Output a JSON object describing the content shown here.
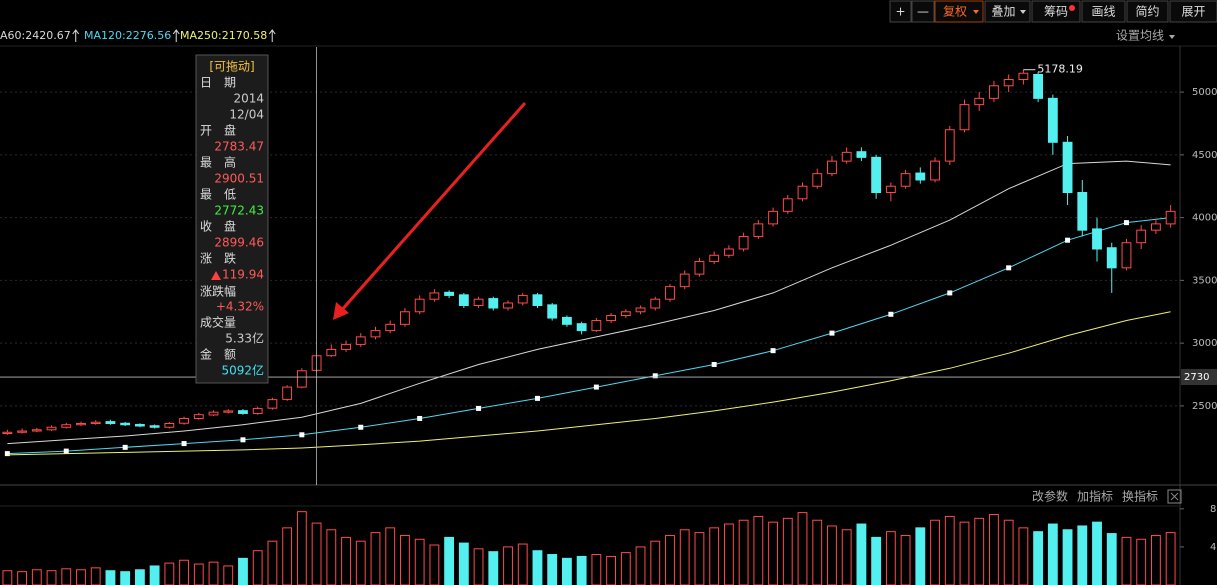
{
  "toolbar": {
    "buttons": [
      "+",
      "—",
      "复权",
      "叠加",
      "筹码",
      "画线",
      "简约",
      "展开"
    ]
  },
  "settings_label": "设置均线",
  "indicator_panel": {
    "buttons": [
      "改参数",
      "加指标",
      "换指标"
    ]
  },
  "tooltip": {
    "drag": "[可拖动]",
    "labels": [
      "日　期",
      "开　盘",
      "最　高",
      "最　低",
      "收　盘",
      "涨　跌",
      "涨跌幅",
      "成交量",
      "金　额"
    ],
    "year": "2014",
    "date": "12/04",
    "change": "119.94",
    "change_pct": "+4.32%",
    "volume": "5.33亿",
    "amount": "5092亿"
  },
  "chart_data": {
    "type": "candlestick",
    "open": [
      2280,
      2290,
      2300,
      2310,
      2330,
      2350,
      2360,
      2375,
      2362,
      2352,
      2342,
      2330,
      2362,
      2400,
      2428,
      2450,
      2462,
      2440,
      2482,
      2552,
      2650,
      2783.47,
      2900,
      2950,
      2990,
      3050,
      3100,
      3150,
      3250,
      3350,
      3405,
      3385,
      3300,
      3355,
      3280,
      3320,
      3385,
      3305,
      3205,
      3155,
      3100,
      3180,
      3220,
      3250,
      3280,
      3350,
      3450,
      3550,
      3650,
      3700,
      3750,
      3850,
      3950,
      4050,
      4150,
      4250,
      4350,
      4450,
      4525,
      4480,
      4200,
      4250,
      4355,
      4300,
      4450,
      4700,
      4900,
      4950,
      5050,
      5100,
      5140,
      4950,
      4600,
      4200,
      3910,
      3760,
      3600,
      3800,
      3900,
      3950
    ],
    "high": [
      2310,
      2320,
      2325,
      2345,
      2365,
      2375,
      2385,
      2390,
      2372,
      2362,
      2352,
      2372,
      2415,
      2445,
      2465,
      2475,
      2475,
      2495,
      2565,
      2665,
      2800,
      2900.51,
      2990,
      3020,
      3080,
      3130,
      3180,
      3280,
      3380,
      3430,
      3420,
      3400,
      3370,
      3370,
      3340,
      3400,
      3400,
      3320,
      3220,
      3170,
      3200,
      3240,
      3270,
      3300,
      3370,
      3470,
      3580,
      3680,
      3730,
      3780,
      3880,
      3980,
      4080,
      4180,
      4280,
      4390,
      4490,
      4560,
      4560,
      4500,
      4280,
      4380,
      4400,
      4480,
      4730,
      4940,
      5000,
      5090,
      5140,
      5178.19,
      5160,
      4980,
      4650,
      4300,
      4000,
      3800,
      3830,
      3940,
      3990,
      4100
    ],
    "low": [
      2270,
      2280,
      2290,
      2300,
      2320,
      2340,
      2350,
      2350,
      2340,
      2330,
      2320,
      2320,
      2350,
      2390,
      2420,
      2440,
      2430,
      2430,
      2470,
      2540,
      2640,
      2772.43,
      2890,
      2930,
      2970,
      3030,
      3080,
      3130,
      3230,
      3330,
      3360,
      3280,
      3280,
      3260,
      3260,
      3300,
      3280,
      3180,
      3130,
      3070,
      3090,
      3160,
      3200,
      3230,
      3260,
      3330,
      3430,
      3530,
      3630,
      3680,
      3730,
      3830,
      3930,
      4030,
      4130,
      4230,
      4330,
      4430,
      4450,
      4150,
      4130,
      4230,
      4270,
      4280,
      4420,
      4680,
      4850,
      4920,
      5000,
      5060,
      4920,
      4500,
      4100,
      3850,
      3650,
      3400,
      3580,
      3750,
      3870,
      3920
    ],
    "close": [
      2290,
      2300,
      2310,
      2330,
      2350,
      2360,
      2370,
      2360,
      2350,
      2340,
      2330,
      2360,
      2400,
      2430,
      2450,
      2460,
      2440,
      2480,
      2550,
      2650,
      2780,
      2899.46,
      2950,
      2990,
      3050,
      3100,
      3150,
      3250,
      3350,
      3400,
      3380,
      3300,
      3350,
      3280,
      3320,
      3380,
      3300,
      3200,
      3150,
      3100,
      3180,
      3220,
      3250,
      3280,
      3350,
      3450,
      3550,
      3650,
      3700,
      3750,
      3850,
      3950,
      4050,
      4150,
      4250,
      4350,
      4450,
      4520,
      4480,
      4200,
      4250,
      4350,
      4300,
      4450,
      4700,
      4900,
      4950,
      5050,
      5100,
      5150,
      4950,
      4600,
      4200,
      3900,
      3750,
      3600,
      3800,
      3900,
      3950,
      4050
    ],
    "volume": [
      1.5,
      1.4,
      1.6,
      1.5,
      1.7,
      1.6,
      1.8,
      1.5,
      1.4,
      1.6,
      2.0,
      2.3,
      2.6,
      2.2,
      2.4,
      2.0,
      2.8,
      3.6,
      4.6,
      6.0,
      7.7,
      6.5,
      5.8,
      5.0,
      4.6,
      5.5,
      6.0,
      5.2,
      4.8,
      4.2,
      5.0,
      4.4,
      3.8,
      3.5,
      4.0,
      4.3,
      3.6,
      3.2,
      2.8,
      3.0,
      3.2,
      3.0,
      3.4,
      4.0,
      4.6,
      5.2,
      5.8,
      5.5,
      6.0,
      6.4,
      6.8,
      7.2,
      6.6,
      7.0,
      7.6,
      6.8,
      6.2,
      5.8,
      6.4,
      5.0,
      5.6,
      5.2,
      6.0,
      6.8,
      7.2,
      6.6,
      7.0,
      7.4,
      6.8,
      6.0,
      5.6,
      6.4,
      5.8,
      6.2,
      6.6,
      5.4,
      5.0,
      4.8,
      5.2,
      5.5
    ],
    "up_color": "#ff4a4a",
    "down_color": "#54f0f0",
    "series": [
      {
        "name": "A60:2420.67",
        "color": "#d8d8d8",
        "x": [
          0,
          4,
          8,
          12,
          16,
          20,
          24,
          28,
          32,
          36,
          40,
          44,
          48,
          52,
          56,
          60,
          64,
          68,
          72,
          76,
          79
        ],
        "values": [
          2200,
          2230,
          2260,
          2300,
          2350,
          2410,
          2520,
          2680,
          2830,
          2950,
          3050,
          3150,
          3260,
          3400,
          3600,
          3780,
          3980,
          4230,
          4430,
          4450,
          4420
        ]
      },
      {
        "name": "MA120:2276.56",
        "color": "#4fd8f0",
        "markers": true,
        "x": [
          0,
          4,
          8,
          12,
          16,
          20,
          24,
          28,
          32,
          36,
          40,
          44,
          48,
          52,
          56,
          60,
          64,
          68,
          72,
          76,
          79
        ],
        "values": [
          2120,
          2140,
          2170,
          2200,
          2230,
          2270,
          2330,
          2400,
          2480,
          2560,
          2650,
          2740,
          2830,
          2940,
          3080,
          3230,
          3400,
          3600,
          3820,
          3960,
          4000
        ]
      },
      {
        "name": "MA250:2170.58",
        "color": "#f0f070",
        "x": [
          0,
          4,
          8,
          12,
          16,
          20,
          24,
          28,
          32,
          36,
          40,
          44,
          48,
          52,
          56,
          60,
          64,
          68,
          72,
          76,
          79
        ],
        "values": [
          2110,
          2120,
          2130,
          2140,
          2150,
          2165,
          2190,
          2220,
          2260,
          2300,
          2350,
          2400,
          2460,
          2530,
          2610,
          2700,
          2800,
          2920,
          3060,
          3180,
          3250
        ]
      }
    ],
    "ylim": [
      1870,
      5375
    ],
    "yticks": [
      2500,
      3000,
      3500,
      4000,
      4500,
      5000
    ],
    "grid": true,
    "crosshair_value": 2730,
    "volume_ylim": [
      0,
      8.4
    ],
    "volume_yticks": [
      4,
      8
    ]
  }
}
